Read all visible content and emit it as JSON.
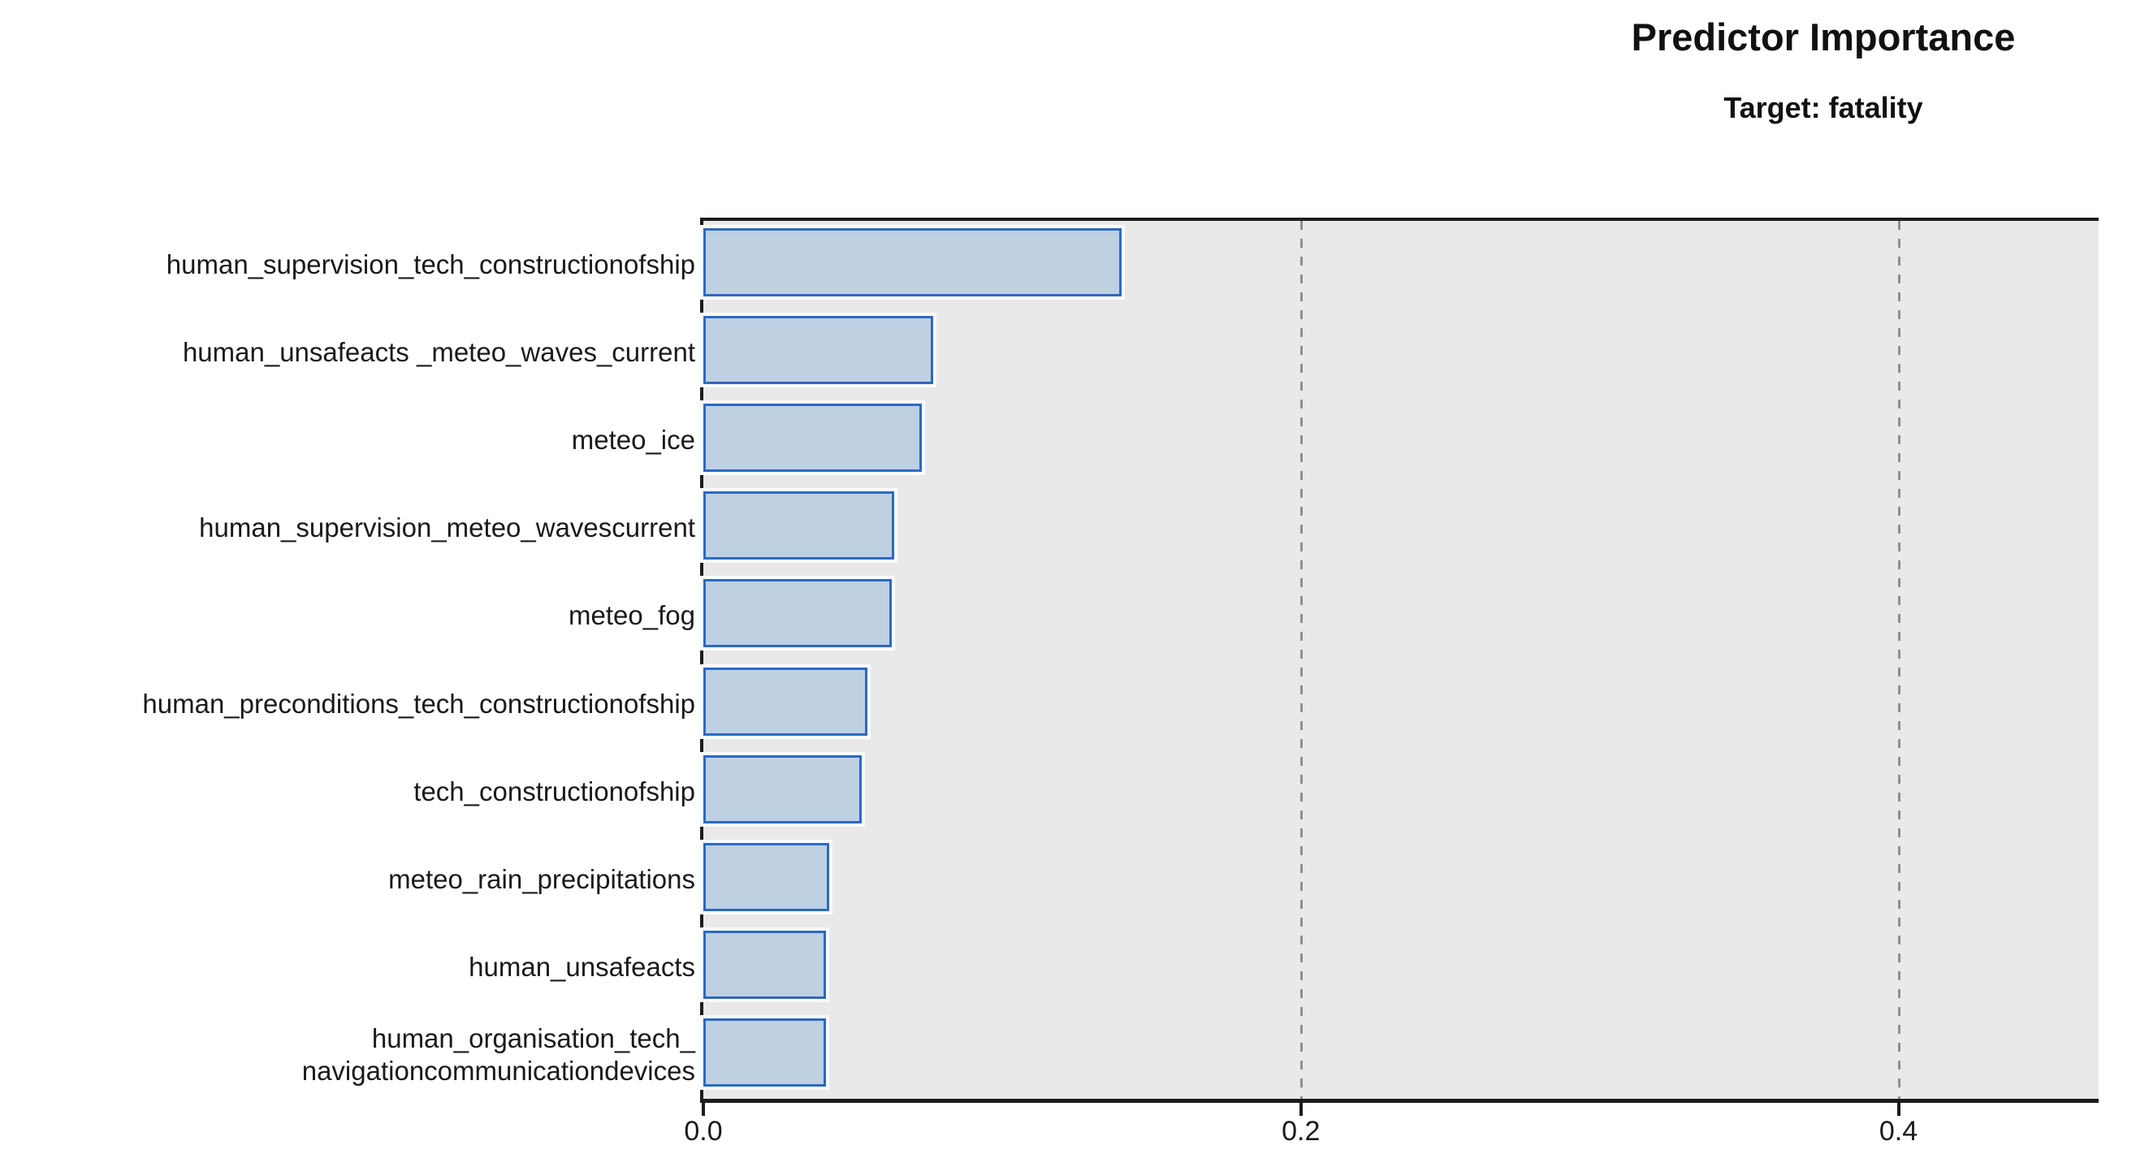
{
  "chart_data": {
    "type": "bar",
    "orientation": "horizontal",
    "title": "Predictor Importance",
    "subtitle": "Target: fatality",
    "categories": [
      "human_supervision_tech_constructionofship",
      "human_unsafeacts _meteo_waves_current",
      "meteo_ice",
      "human_supervision_meteo_wavescurrent",
      "meteo_fog",
      "human_preconditions_tech_constructionofship",
      "tech_constructionofship",
      "meteo_rain_precipitations",
      "human_unsafeacts",
      "human_organisation_tech_\nnavigationcommunicationdevices"
    ],
    "values": [
      0.14,
      0.077,
      0.073,
      0.064,
      0.063,
      0.055,
      0.053,
      0.042,
      0.041,
      0.041
    ],
    "xlabel": "",
    "ylabel": "",
    "xlim": [
      0.0,
      0.467
    ],
    "x_ticks": [
      0.0,
      0.2,
      0.4
    ],
    "x_tick_labels": [
      "0.0",
      "0.2",
      "0.4"
    ],
    "gridlines_at": [
      0.2,
      0.4
    ],
    "grid_style": "dashed",
    "legend_position": "none",
    "colors": {
      "bar_fill": "#bfd0e3",
      "bar_border": "#2b69c2",
      "plot_background": "#e9e9e9",
      "frame": "#1c1c1c",
      "page_background": "#ffffff"
    }
  }
}
